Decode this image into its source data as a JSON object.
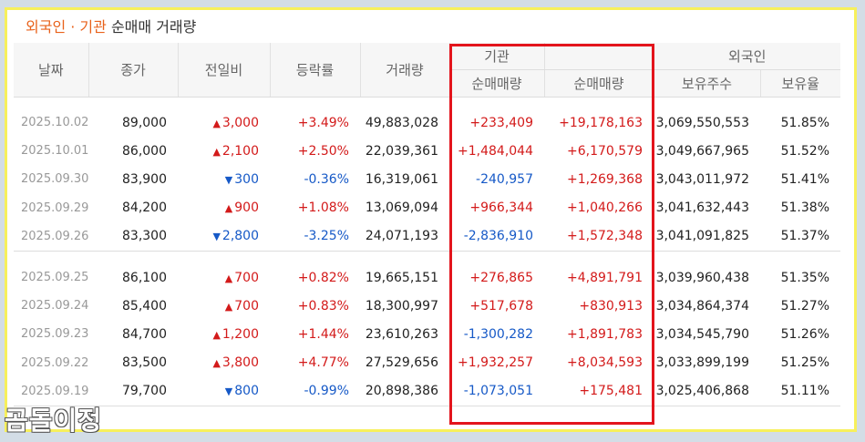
{
  "title": {
    "highlight": "외국인 · 기관",
    "rest": " 순매매 거래량"
  },
  "headers": {
    "date": "날짜",
    "close": "종가",
    "change": "전일비",
    "rate": "등락률",
    "volume": "거래량",
    "inst": "기관",
    "foreign": "외국인",
    "inst_net": "순매매량",
    "foreign_net": "순매매량",
    "holdings": "보유주수",
    "ratio": "보유율"
  },
  "rows": [
    {
      "date": "2025.10.02",
      "close": "89,000",
      "dir": "up",
      "change": "3,000",
      "rate": "+3.49%",
      "volume": "49,883,028",
      "inst": "+233,409",
      "foreign": "+19,178,163",
      "holdings": "3,069,550,553",
      "ratio": "51.85%"
    },
    {
      "date": "2025.10.01",
      "close": "86,000",
      "dir": "up",
      "change": "2,100",
      "rate": "+2.50%",
      "volume": "22,039,361",
      "inst": "+1,484,044",
      "foreign": "+6,170,579",
      "holdings": "3,049,667,965",
      "ratio": "51.52%"
    },
    {
      "date": "2025.09.30",
      "close": "83,900",
      "dir": "down",
      "change": "300",
      "rate": "-0.36%",
      "volume": "16,319,061",
      "inst": "-240,957",
      "foreign": "+1,269,368",
      "holdings": "3,043,011,972",
      "ratio": "51.41%"
    },
    {
      "date": "2025.09.29",
      "close": "84,200",
      "dir": "up",
      "change": "900",
      "rate": "+1.08%",
      "volume": "13,069,094",
      "inst": "+966,344",
      "foreign": "+1,040,266",
      "holdings": "3,041,632,443",
      "ratio": "51.38%"
    },
    {
      "date": "2025.09.26",
      "close": "83,300",
      "dir": "down",
      "change": "2,800",
      "rate": "-3.25%",
      "volume": "24,071,193",
      "inst": "-2,836,910",
      "foreign": "+1,572,348",
      "holdings": "3,041,091,825",
      "ratio": "51.37%"
    },
    {
      "date": "2025.09.25",
      "close": "86,100",
      "dir": "up",
      "change": "700",
      "rate": "+0.82%",
      "volume": "19,665,151",
      "inst": "+276,865",
      "foreign": "+4,891,791",
      "holdings": "3,039,960,438",
      "ratio": "51.35%"
    },
    {
      "date": "2025.09.24",
      "close": "85,400",
      "dir": "up",
      "change": "700",
      "rate": "+0.83%",
      "volume": "18,300,997",
      "inst": "+517,678",
      "foreign": "+830,913",
      "holdings": "3,034,864,374",
      "ratio": "51.27%"
    },
    {
      "date": "2025.09.23",
      "close": "84,700",
      "dir": "up",
      "change": "1,200",
      "rate": "+1.44%",
      "volume": "23,610,263",
      "inst": "-1,300,282",
      "foreign": "+1,891,783",
      "holdings": "3,034,545,790",
      "ratio": "51.26%"
    },
    {
      "date": "2025.09.22",
      "close": "83,500",
      "dir": "up",
      "change": "3,800",
      "rate": "+4.77%",
      "volume": "27,529,656",
      "inst": "+1,932,257",
      "foreign": "+8,034,593",
      "holdings": "3,033,899,199",
      "ratio": "51.25%"
    },
    {
      "date": "2025.09.19",
      "close": "79,700",
      "dir": "down",
      "change": "800",
      "rate": "-0.99%",
      "volume": "20,898,386",
      "inst": "-1,073,051",
      "foreign": "+175,481",
      "holdings": "3,025,406,868",
      "ratio": "51.11%"
    }
  ],
  "arrows": {
    "up": "▲",
    "down": "▼"
  },
  "colors": {
    "up": "#d31a1a",
    "down": "#1659c7",
    "frame": "#f7f05c",
    "highlight_box": "#e3141c",
    "title_accent": "#e8611a"
  },
  "watermark": "곰돌이정"
}
